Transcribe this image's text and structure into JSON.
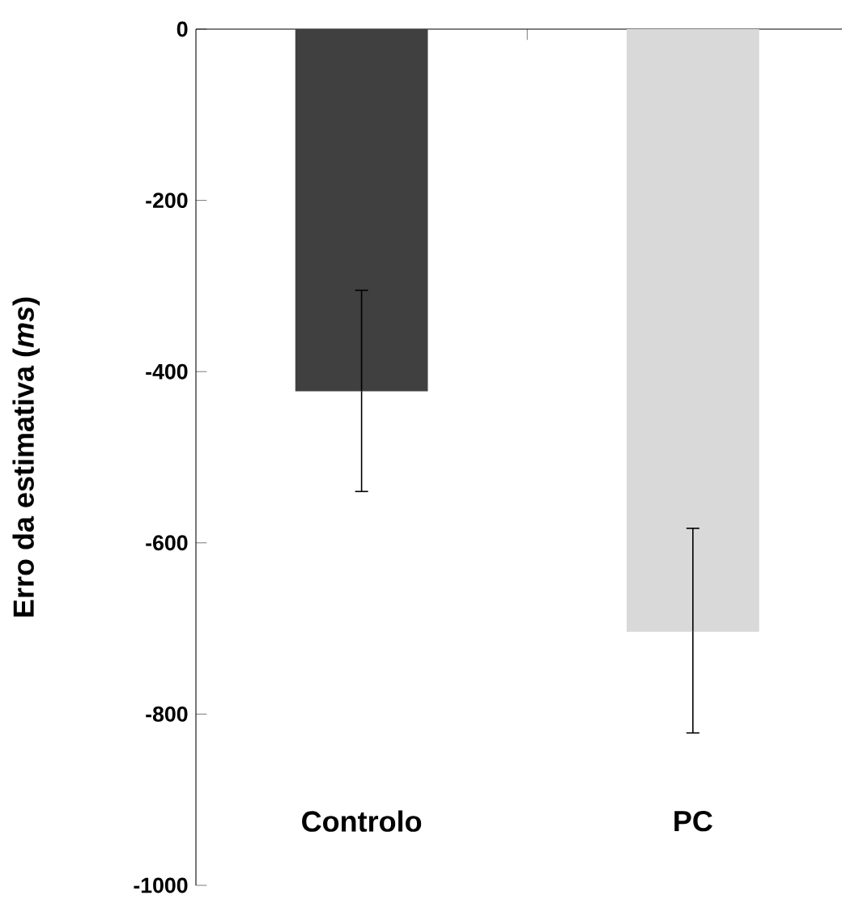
{
  "chart_data": {
    "type": "bar",
    "ylabel": "Erro da estimativa (*ms*)",
    "categories": [
      "Controlo",
      "PC"
    ],
    "values": [
      -423,
      -704
    ],
    "errors": [
      [
        -540,
        -305
      ],
      [
        -822,
        -583
      ]
    ],
    "colors": [
      "#404040",
      "#d9d9d9"
    ],
    "ylim": [
      -1000,
      0
    ],
    "yticks": [
      -1000,
      -800,
      -600,
      -400,
      -200,
      0
    ]
  }
}
